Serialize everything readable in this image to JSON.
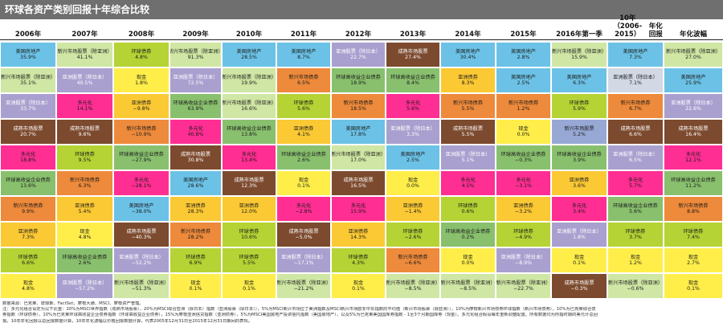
{
  "title": "环球各资产类别回报十年综合比较",
  "colors": {
    "美国房地产": "#6cc2e6",
    "新兴市场股票（除亚洲）": "#cfe6a4",
    "环球债券": "#b5d334",
    "新兴市场股票": "#98a8d4",
    "亚洲股票（除日本）": "#d2d8e4",
    "成熟市场股票": "#7c4a2e",
    "亚洲债券": "#fbc934",
    "环球高收益企业债券": "#89c06e",
    "现金": "#ffee4a",
    "多元化": "#ff2e93",
    "新兴市场债券": "#ee8a3b",
    "亚洲股票（除日本） ": "#a9a0cf",
    "header_bg": "#6f6f6f"
  },
  "chart_data": {
    "type": "table",
    "title": "环球各资产类别回报十年综合比较",
    "columns": [
      "2006年",
      "2007年",
      "2008年",
      "2009年",
      "2010年",
      "2011年",
      "2012年",
      "2013年",
      "2014年",
      "2015年",
      "2016年 第一季",
      "10年（2006-2015） 年化回报",
      "年化波幅"
    ],
    "cells": [
      [
        {
          "name": "美国房地产",
          "value": "35.9%",
          "color": "#6cc2e6",
          "text": "#1a1a1a"
        },
        {
          "name": "新兴市场股票（除亚洲）",
          "value": "41.1%",
          "color": "#cfe6a4",
          "text": "#1a1a1a"
        },
        {
          "name": "环球债券",
          "value": "4.8%",
          "color": "#b5d334",
          "text": "#1a1a1a"
        },
        {
          "name": "新兴市场股票（除亚洲）",
          "value": "91.3%",
          "color": "#cfe6a4",
          "text": "#1a1a1a"
        },
        {
          "name": "美国房地产",
          "value": "28.5%",
          "color": "#6cc2e6",
          "text": "#1a1a1a"
        },
        {
          "name": "美国房地产",
          "value": "8.7%",
          "color": "#6cc2e6",
          "text": "#1a1a1a"
        },
        {
          "name": "亚洲股票（除日本）",
          "value": "22.7%",
          "color": "#a9a0cf",
          "text": "#ffffff"
        },
        {
          "name": "成熟市场股票",
          "value": "27.4%",
          "color": "#7c4a2e",
          "text": "#ffffff"
        },
        {
          "name": "美国房地产",
          "value": "30.4%",
          "color": "#6cc2e6",
          "text": "#1a1a1a"
        },
        {
          "name": "美国房地产",
          "value": "2.8%",
          "color": "#6cc2e6",
          "text": "#1a1a1a"
        },
        {
          "name": "新兴市场股票（除亚洲）",
          "value": "15.9%",
          "color": "#cfe6a4",
          "text": "#1a1a1a"
        },
        {
          "name": "美国房地产",
          "value": "7.3%",
          "color": "#6cc2e6",
          "text": "#1a1a1a"
        },
        {
          "name": "新兴市场股票（除亚洲）",
          "value": "27.0%",
          "color": "#cfe6a4",
          "text": "#1a1a1a"
        }
      ],
      [
        {
          "name": "新兴市场股票（除亚洲）",
          "value": "35.1%",
          "color": "#cfe6a4",
          "text": "#1a1a1a"
        },
        {
          "name": "亚洲股票（除日本）",
          "value": "40.5%",
          "color": "#a9a0cf",
          "text": "#ffffff"
        },
        {
          "name": "现金",
          "value": "1.8%",
          "color": "#ffee4a",
          "text": "#1a1a1a"
        },
        {
          "name": "亚洲股票（除日本）",
          "value": "72.5%",
          "color": "#a9a0cf",
          "text": "#ffffff"
        },
        {
          "name": "新兴市场股票（除亚洲）",
          "value": "19.9%",
          "color": "#cfe6a4",
          "text": "#1a1a1a"
        },
        {
          "name": "新兴市场债券",
          "value": "6.5%",
          "color": "#ee8a3b",
          "text": "#1a1a1a"
        },
        {
          "name": "环球高收益企业债券",
          "value": "18.9%",
          "color": "#89c06e",
          "text": "#1a1a1a"
        },
        {
          "name": "环球高收益企业债券",
          "value": "8.4%",
          "color": "#89c06e",
          "text": "#1a1a1a"
        },
        {
          "name": "亚洲债券",
          "value": "8.3%",
          "color": "#fbc934",
          "text": "#1a1a1a"
        },
        {
          "name": "美国房地产",
          "value": "2.5%",
          "color": "#6cc2e6",
          "text": "#1a1a1a"
        },
        {
          "name": "美国房地产",
          "value": "6.3%",
          "color": "#6cc2e6",
          "text": "#1a1a1a"
        },
        {
          "name": "亚洲股票（除日本）",
          "value": "7.1%",
          "color": "#d2d8e4",
          "text": "#1a1a1a"
        },
        {
          "name": "美国房地产",
          "value": "25.9%",
          "color": "#6cc2e6",
          "text": "#1a1a1a"
        }
      ],
      [
        {
          "name": "亚洲股票（除日本）",
          "value": "33.7%",
          "color": "#a9a0cf",
          "text": "#ffffff"
        },
        {
          "name": "多元化",
          "value": "14.1%",
          "color": "#ff2e93",
          "text": "#1a1a1a"
        },
        {
          "name": "亚洲债券",
          "value": "−9.8%",
          "color": "#fbc934",
          "text": "#1a1a1a"
        },
        {
          "name": "环球高收益企业债券",
          "value": "63.9%",
          "color": "#89c06e",
          "text": "#1a1a1a"
        },
        {
          "name": "新兴市场股票（除亚洲）",
          "value": "16.6%",
          "color": "#cfe6a4",
          "text": "#1a1a1a"
        },
        {
          "name": "环球债券",
          "value": "5.6%",
          "color": "#b5d334",
          "text": "#1a1a1a"
        },
        {
          "name": "新兴市场债券",
          "value": "18.5%",
          "color": "#ee8a3b",
          "text": "#1a1a1a"
        },
        {
          "name": "多元化",
          "value": "5.6%",
          "color": "#ff2e93",
          "text": "#1a1a1a"
        },
        {
          "name": "新兴市场债券",
          "value": "5.5%",
          "color": "#ee8a3b",
          "text": "#1a1a1a"
        },
        {
          "name": "新兴市场债券",
          "value": "1.2%",
          "color": "#ee8a3b",
          "text": "#1a1a1a"
        },
        {
          "name": "环球债券",
          "value": "5.9%",
          "color": "#b5d334",
          "text": "#1a1a1a"
        },
        {
          "name": "新兴市场债券",
          "value": "6.7%",
          "color": "#ee8a3b",
          "text": "#1a1a1a"
        },
        {
          "name": "亚洲股票（除日本）",
          "value": "22.6%",
          "color": "#a9a0cf",
          "text": "#ffffff"
        }
      ],
      [
        {
          "name": "成熟市场股票",
          "value": "20.7%",
          "color": "#7c4a2e",
          "text": "#ffffff"
        },
        {
          "name": "成熟市场股票",
          "value": "9.6%",
          "color": "#7c4a2e",
          "text": "#ffffff"
        },
        {
          "name": "新兴市场债券",
          "value": "−10.9%",
          "color": "#ee8a3b",
          "text": "#1a1a1a"
        },
        {
          "name": "多元化",
          "value": "40.8%",
          "color": "#ff2e93",
          "text": "#1a1a1a"
        },
        {
          "name": "环球高收益企业债券",
          "value": "13.8%",
          "color": "#89c06e",
          "text": "#1a1a1a"
        },
        {
          "name": "亚洲债券",
          "value": "4.1%",
          "color": "#fbc934",
          "text": "#1a1a1a"
        },
        {
          "name": "美国房地产",
          "value": "17.8%",
          "color": "#6cc2e6",
          "text": "#1a1a1a"
        },
        {
          "name": "亚洲股票（除日本）",
          "value": "3.3%",
          "color": "#a9a0cf",
          "text": "#ffffff"
        },
        {
          "name": "成熟市场股票",
          "value": "5.5%",
          "color": "#7c4a2e",
          "text": "#ffffff"
        },
        {
          "name": "现金",
          "value": "0.0%",
          "color": "#ffee4a",
          "text": "#1a1a1a"
        },
        {
          "name": "新兴市场股票",
          "value": "5.2%",
          "color": "#98a8d4",
          "text": "#1a1a1a"
        },
        {
          "name": "成熟市场股票",
          "value": "6.6%",
          "color": "#7c4a2e",
          "text": "#ffffff"
        },
        {
          "name": "成熟市场股票",
          "value": "16.4%",
          "color": "#7c4a2e",
          "text": "#ffffff"
        }
      ],
      [
        {
          "name": "多元化",
          "value": "18.8%",
          "color": "#ff2e93",
          "text": "#1a1a1a"
        },
        {
          "name": "环球债券",
          "value": "9.5%",
          "color": "#b5d334",
          "text": "#1a1a1a"
        },
        {
          "name": "环球高收益企业债券",
          "value": "−27.9%",
          "color": "#89c06e",
          "text": "#1a1a1a"
        },
        {
          "name": "成熟市场股票",
          "value": "30.8%",
          "color": "#7c4a2e",
          "text": "#ffffff"
        },
        {
          "name": "多元化",
          "value": "13.4%",
          "color": "#ff2e93",
          "text": "#1a1a1a"
        },
        {
          "name": "环球高收益企业债券",
          "value": "2.6%",
          "color": "#89c06e",
          "text": "#1a1a1a"
        },
        {
          "name": "新兴市场股票（除亚洲）",
          "value": "17.0%",
          "color": "#cfe6a4",
          "text": "#1a1a1a"
        },
        {
          "name": "美国房地产",
          "value": "2.5%",
          "color": "#6cc2e6",
          "text": "#1a1a1a"
        },
        {
          "name": "亚洲股票（除日本）",
          "value": "5.1%",
          "color": "#a9a0cf",
          "text": "#ffffff"
        },
        {
          "name": "环球高收益企业债券",
          "value": "−0.3%",
          "color": "#89c06e",
          "text": "#1a1a1a"
        },
        {
          "name": "环球高收益企业债券",
          "value": "3.9%",
          "color": "#89c06e",
          "text": "#1a1a1a"
        },
        {
          "name": "亚洲股票（除日本）",
          "value": "6.5%",
          "color": "#a9a0cf",
          "text": "#ffffff"
        },
        {
          "name": "多元化",
          "value": "12.1%",
          "color": "#ff2e93",
          "text": "#1a1a1a"
        }
      ],
      [
        {
          "name": "环球高收益企业债券",
          "value": "13.6%",
          "color": "#89c06e",
          "text": "#1a1a1a"
        },
        {
          "name": "新兴市场债券",
          "value": "6.3%",
          "color": "#ee8a3b",
          "text": "#1a1a1a"
        },
        {
          "name": "多元化",
          "value": "−28.1%",
          "color": "#ff2e93",
          "text": "#1a1a1a"
        },
        {
          "name": "美国房地产",
          "value": "28.6%",
          "color": "#6cc2e6",
          "text": "#1a1a1a"
        },
        {
          "name": "成熟市场股票",
          "value": "12.3%",
          "color": "#7c4a2e",
          "text": "#ffffff"
        },
        {
          "name": "现金",
          "value": "0.1%",
          "color": "#ffee4a",
          "text": "#1a1a1a"
        },
        {
          "name": "成熟市场股票",
          "value": "16.5%",
          "color": "#7c4a2e",
          "text": "#ffffff"
        },
        {
          "name": "现金",
          "value": "0.0%",
          "color": "#ffee4a",
          "text": "#1a1a1a"
        },
        {
          "name": "多元化",
          "value": "4.5%",
          "color": "#ff2e93",
          "text": "#1a1a1a"
        },
        {
          "name": "多元化",
          "value": "−3.1%",
          "color": "#ff2e93",
          "text": "#1a1a1a"
        },
        {
          "name": "亚洲债券",
          "value": "3.6%",
          "color": "#fbc934",
          "text": "#1a1a1a"
        },
        {
          "name": "多元化",
          "value": "5.7%",
          "color": "#ff2e93",
          "text": "#1a1a1a"
        },
        {
          "name": "环球高收益企业债券",
          "value": "11.2%",
          "color": "#89c06e",
          "text": "#1a1a1a"
        }
      ],
      [
        {
          "name": "新兴市场债券",
          "value": "9.9%",
          "color": "#ee8a3b",
          "text": "#1a1a1a"
        },
        {
          "name": "亚洲债券",
          "value": "5.4%",
          "color": "#fbc934",
          "text": "#1a1a1a"
        },
        {
          "name": "美国房地产",
          "value": "−38.0%",
          "color": "#6cc2e6",
          "text": "#1a1a1a"
        },
        {
          "name": "亚洲债券",
          "value": "28.3%",
          "color": "#fbc934",
          "text": "#1a1a1a"
        },
        {
          "name": "亚洲债券",
          "value": "12.0%",
          "color": "#fbc934",
          "text": "#1a1a1a"
        },
        {
          "name": "多元化",
          "value": "−2.8%",
          "color": "#ff2e93",
          "text": "#1a1a1a"
        },
        {
          "name": "多元化",
          "value": "15.9%",
          "color": "#ff2e93",
          "text": "#1a1a1a"
        },
        {
          "name": "亚洲债券",
          "value": "−1.4%",
          "color": "#fbc934",
          "text": "#1a1a1a"
        },
        {
          "name": "环球债券",
          "value": "0.6%",
          "color": "#b5d334",
          "text": "#1a1a1a"
        },
        {
          "name": "亚洲债券",
          "value": "−3.2%",
          "color": "#fbc934",
          "text": "#1a1a1a"
        },
        {
          "name": "多元化",
          "value": "3.4%",
          "color": "#ff2e93",
          "text": "#1a1a1a"
        },
        {
          "name": "环球高收益企业债券",
          "value": "5.6%",
          "color": "#89c06e",
          "text": "#1a1a1a"
        },
        {
          "name": "新兴市场债券",
          "value": "8.8%",
          "color": "#ee8a3b",
          "text": "#1a1a1a"
        }
      ],
      [
        {
          "name": "亚洲债券",
          "value": "7.3%",
          "color": "#fbc934",
          "text": "#1a1a1a"
        },
        {
          "name": "现金",
          "value": "4.8%",
          "color": "#ffee4a",
          "text": "#1a1a1a"
        },
        {
          "name": "成熟市场股票",
          "value": "−40.3%",
          "color": "#7c4a2e",
          "text": "#ffffff"
        },
        {
          "name": "新兴市场债券",
          "value": "28.2%",
          "color": "#ee8a3b",
          "text": "#1a1a1a"
        },
        {
          "name": "环球债券",
          "value": "10.6%",
          "color": "#b5d334",
          "text": "#1a1a1a"
        },
        {
          "name": "成熟市场股票",
          "value": "−5.0%",
          "color": "#7c4a2e",
          "text": "#ffffff"
        },
        {
          "name": "亚洲债券",
          "value": "14.3%",
          "color": "#fbc934",
          "text": "#1a1a1a"
        },
        {
          "name": "环球债券",
          "value": "−2.6%",
          "color": "#b5d334",
          "text": "#1a1a1a"
        },
        {
          "name": "环球高收益企业债券",
          "value": "0.2%",
          "color": "#89c06e",
          "text": "#1a1a1a"
        },
        {
          "name": "环球债券",
          "value": "−4.9%",
          "color": "#b5d334",
          "text": "#1a1a1a"
        },
        {
          "name": "亚洲股票（除日本）",
          "value": "1.8%",
          "color": "#a9a0cf",
          "text": "#ffffff"
        },
        {
          "name": "环球债券",
          "value": "3.7%",
          "color": "#b5d334",
          "text": "#1a1a1a"
        },
        {
          "name": "环球债券",
          "value": "7.4%",
          "color": "#b5d334",
          "text": "#1a1a1a"
        }
      ],
      [
        {
          "name": "环球债券",
          "value": "6.6%",
          "color": "#b5d334",
          "text": "#1a1a1a"
        },
        {
          "name": "环球高收益企业债券",
          "value": "2.6%",
          "color": "#89c06e",
          "text": "#1a1a1a"
        },
        {
          "name": "亚洲股票（除日本）",
          "value": "−52.2%",
          "color": "#a9a0cf",
          "text": "#ffffff"
        },
        {
          "name": "环球债券",
          "value": "6.9%",
          "color": "#b5d334",
          "text": "#1a1a1a"
        },
        {
          "name": "环球债券",
          "value": "5.5%",
          "color": "#b5d334",
          "text": "#1a1a1a"
        },
        {
          "name": "亚洲股票（除日本）",
          "value": "−17.1%",
          "color": "#a9a0cf",
          "text": "#ffffff"
        },
        {
          "name": "环球债券",
          "value": "4.3%",
          "color": "#b5d334",
          "text": "#1a1a1a"
        },
        {
          "name": "新兴市场债券",
          "value": "−6.6%",
          "color": "#ee8a3b",
          "text": "#1a1a1a"
        },
        {
          "name": "现金",
          "value": "0.0%",
          "color": "#ffee4a",
          "text": "#1a1a1a"
        },
        {
          "name": "亚洲股票（除日本）",
          "value": "−8.9%",
          "color": "#a9a0cf",
          "text": "#ffffff"
        },
        {
          "name": "现金",
          "value": "0.1%",
          "color": "#ffee4a",
          "text": "#1a1a1a"
        },
        {
          "name": "现金",
          "value": "1.2%",
          "color": "#ffee4a",
          "text": "#1a1a1a"
        },
        {
          "name": "现金",
          "value": "2.7%",
          "color": "#ffee4a",
          "text": "#1a1a1a"
        }
      ],
      [
        {
          "name": "现金",
          "value": "4.8%",
          "color": "#ffee4a",
          "text": "#1a1a1a"
        },
        {
          "name": "亚洲股票（除日本）",
          "value": "−57.2%",
          "color": "#a9a0cf",
          "text": "#ffffff"
        },
        {
          "name": "新兴市场股票（除亚洲）",
          "value": "−51.3%",
          "color": "#cfe6a4",
          "text": "#1a1a1a"
        },
        {
          "name": "现金",
          "value": "0.1%",
          "color": "#ffee4a",
          "text": "#1a1a1a"
        },
        {
          "name": "现金",
          "value": "0.1%",
          "color": "#ffee4a",
          "text": "#1a1a1a"
        },
        {
          "name": "新兴市场股票（除亚洲）",
          "value": "−21.2%",
          "color": "#cfe6a4",
          "text": "#1a1a1a"
        },
        {
          "name": "现金",
          "value": "0.1%",
          "color": "#ffee4a",
          "text": "#1a1a1a"
        },
        {
          "name": "新兴市场股票（除亚洲）",
          "value": "−8.5%",
          "color": "#cfe6a4",
          "text": "#1a1a1a"
        },
        {
          "name": "新兴市场股票（除亚洲）",
          "value": "−8.5%",
          "color": "#cfe6a4",
          "text": "#1a1a1a"
        },
        {
          "name": "新兴市场股票（除亚洲）",
          "value": "−22.7%",
          "color": "#cfe6a4",
          "text": "#1a1a1a"
        },
        {
          "name": "成熟市场股票",
          "value": "−0.3%",
          "color": "#7c4a2e",
          "text": "#ffffff"
        },
        {
          "name": "新兴市场股票（除亚洲）",
          "value": "−0.6%",
          "color": "#cfe6a4",
          "text": "#1a1a1a"
        },
        {
          "name": "现金",
          "value": "0.1%",
          "color": "#ffee4a",
          "text": "#1a1a1a"
        }
      ]
    ]
  },
  "notes": [
    "数据来源：巴克莱、道琼斯、FactSet、摩根大通、MSCI、摩根资产管理。",
    "注：多元化组合设定为以下比重：20%为MSCI世界指数（成熟市场股票），20%为MSCI综合亚洲（除日本）指数（亚洲股票（除日本）），5%为MSCI新兴市场拉丁美洲指数及MSCI新兴市场欧非中东指数的平均值（新兴市场股票（除亚洲）），10%为摩根新兴市场债券环球指数（新兴市场债券），10%为巴克莱综合债",
    "券指数（环球债券），10%为巴克莱环球高收益企业债券指数（环球高收益企业债券），15%为摩根亚洲信贷指数（亚洲债券），5%为MSCI美国房地产投资信托指数（美国房地产），以及5%为巴克莱美国国库券指数 - 1至3个月期国库券（现金）。多元化组合假设每年重新调整配置。所有数据均为所指时期的美元计总回",
    "报。10年年化回报以总回报数据计算，10年年化波幅以价格回报数据计算，代表2005年12月31日至2015年12月31日期间的表现。"
  ]
}
